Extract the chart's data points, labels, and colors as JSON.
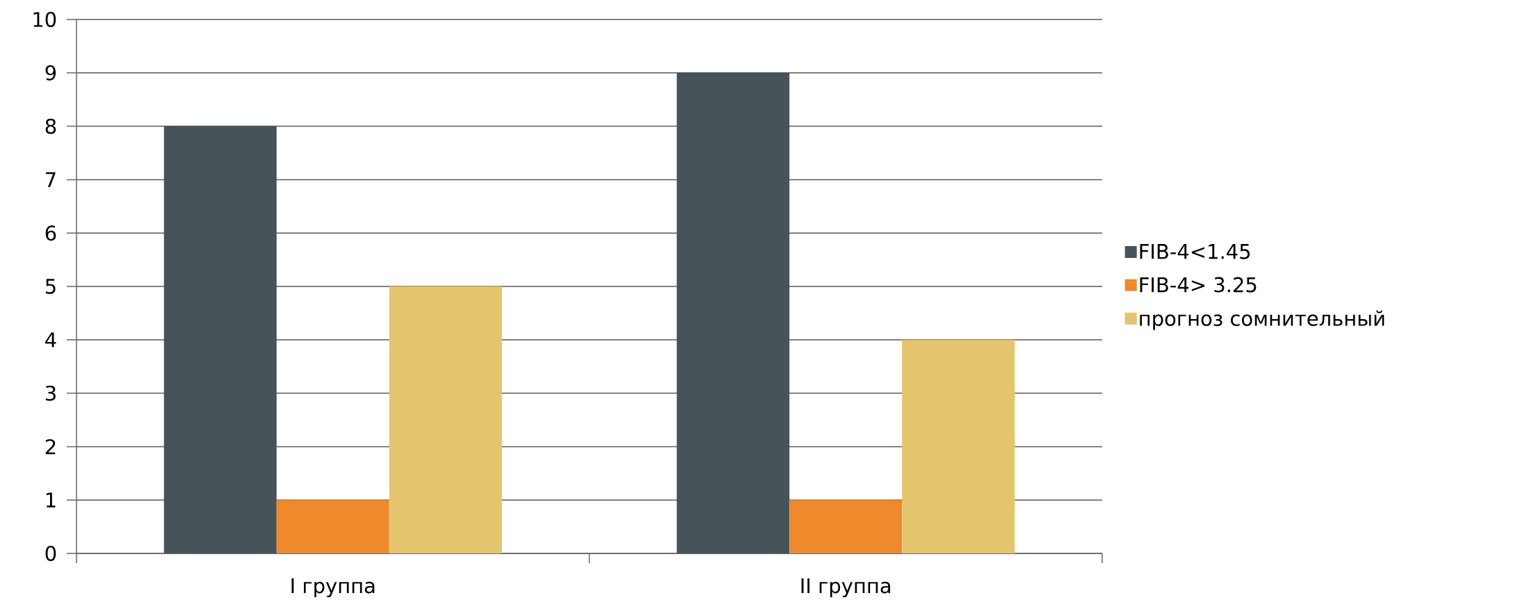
{
  "chart_data": {
    "type": "bar",
    "categories": [
      "I группа",
      "II группа"
    ],
    "series": [
      {
        "name": "FIB-4<1.45",
        "color": "#465359",
        "values": [
          8,
          9
        ]
      },
      {
        "name": "FIB-4> 3.25",
        "color": "#ee8a2c",
        "values": [
          1,
          1
        ]
      },
      {
        "name": "прогноз сомнительный",
        "color": "#e5c46e",
        "values": [
          5,
          4
        ]
      }
    ],
    "ylim": [
      0,
      10
    ],
    "yticks": [
      0,
      1,
      2,
      3,
      4,
      5,
      6,
      7,
      8,
      9,
      10
    ],
    "grid": "y",
    "legend": "right"
  }
}
